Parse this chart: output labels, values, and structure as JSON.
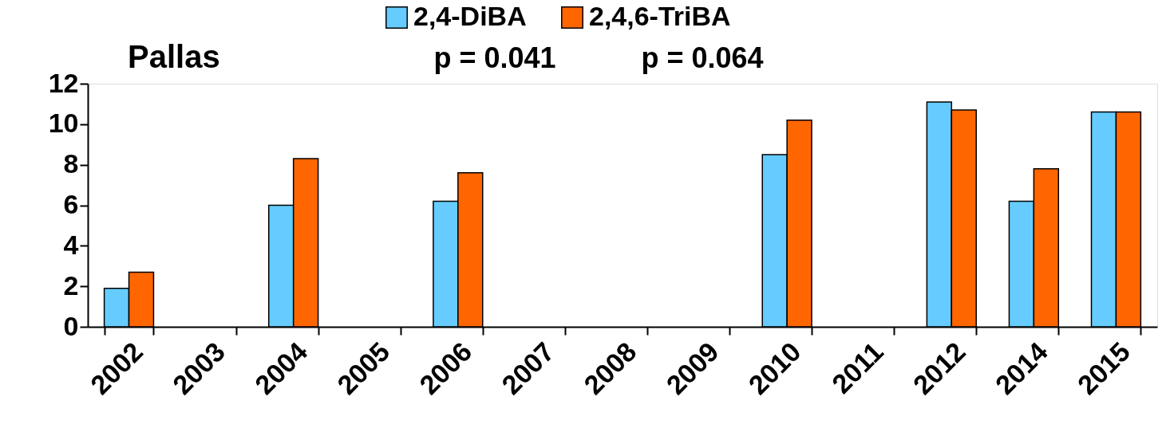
{
  "chart_data": {
    "type": "bar",
    "categories": [
      "2002",
      "2003",
      "2004",
      "2005",
      "2006",
      "2007",
      "2008",
      "2009",
      "2010",
      "2011",
      "2012",
      "2014",
      "2015"
    ],
    "series": [
      {
        "name": "2,4-DiBA",
        "color": "#66ccff",
        "values": [
          1.9,
          null,
          6.0,
          null,
          6.2,
          null,
          null,
          null,
          8.5,
          null,
          11.1,
          6.2,
          10.6
        ]
      },
      {
        "name": "2,4,6-TriBA",
        "color": "#ff6600",
        "values": [
          2.7,
          null,
          8.3,
          null,
          7.6,
          null,
          null,
          null,
          10.2,
          null,
          10.7,
          7.8,
          10.6
        ]
      }
    ],
    "annotations": [
      "Pallas",
      "p = 0.041",
      "p = 0.064"
    ],
    "ylim": [
      0,
      12
    ],
    "yticks": [
      0,
      2,
      4,
      6,
      8,
      10,
      12
    ],
    "grid": false,
    "legend": "top"
  }
}
